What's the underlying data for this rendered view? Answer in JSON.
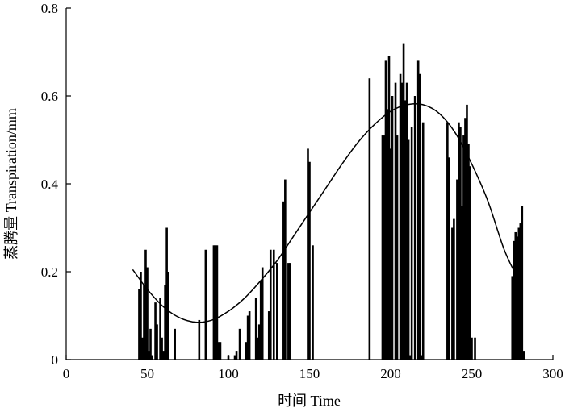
{
  "chart_data": {
    "type": "bar",
    "xlabel": "时间 Time",
    "ylabel": "蒸腾量 Transpiration/mm",
    "xlim": [
      0,
      300
    ],
    "ylim": [
      0,
      0.8
    ],
    "xticks": [
      "0",
      "50",
      "100",
      "150",
      "200",
      "250",
      "300"
    ],
    "yticks": [
      "0",
      "0.2",
      "0.4",
      "0.6",
      "0.8"
    ],
    "grid": false,
    "legend": "none",
    "bars": {
      "x": [
        45,
        46,
        47,
        48,
        49,
        50,
        51,
        52,
        53,
        55,
        56,
        58,
        59,
        60,
        61,
        62,
        63,
        67,
        82,
        86,
        91,
        92,
        93,
        94,
        95,
        100,
        104,
        105,
        107,
        111,
        112,
        113,
        117,
        118,
        119,
        120,
        121,
        125,
        126,
        128,
        130,
        134,
        135,
        137,
        138,
        149,
        150,
        152,
        187,
        195,
        196,
        197,
        198,
        199,
        200,
        201,
        203,
        204,
        206,
        207,
        208,
        209,
        210,
        211,
        212,
        213,
        215,
        217,
        218,
        219,
        220,
        235,
        236,
        238,
        239,
        241,
        242,
        243,
        244,
        245,
        246,
        247,
        248,
        249,
        250,
        252,
        275,
        276,
        277,
        278,
        279,
        280,
        281,
        282
      ],
      "values": [
        0.16,
        0.2,
        0.05,
        0.17,
        0.25,
        0.21,
        0.02,
        0.07,
        0.01,
        0.13,
        0.08,
        0.14,
        0.05,
        0.02,
        0.17,
        0.3,
        0.2,
        0.07,
        0.09,
        0.25,
        0.26,
        0.26,
        0.26,
        0.04,
        0.04,
        0.01,
        0.01,
        0.02,
        0.07,
        0.04,
        0.1,
        0.11,
        0.14,
        0.05,
        0.08,
        0.18,
        0.21,
        0.11,
        0.25,
        0.25,
        0.22,
        0.36,
        0.41,
        0.22,
        0.22,
        0.48,
        0.45,
        0.26,
        0.64,
        0.51,
        0.51,
        0.68,
        0.57,
        0.69,
        0.48,
        0.6,
        0.63,
        0.51,
        0.65,
        0.63,
        0.72,
        0.59,
        0.63,
        0.5,
        0.01,
        0.53,
        0.6,
        0.68,
        0.65,
        0.01,
        0.54,
        0.54,
        0.46,
        0.3,
        0.32,
        0.41,
        0.54,
        0.53,
        0.35,
        0.51,
        0.55,
        0.58,
        0.49,
        0.44,
        0.05,
        0.05,
        0.19,
        0.27,
        0.29,
        0.28,
        0.3,
        0.31,
        0.35,
        0.02
      ]
    },
    "fit_curve": {
      "x": [
        41,
        50,
        60,
        70,
        80,
        90,
        100,
        110,
        120,
        130,
        140,
        150,
        160,
        170,
        180,
        190,
        200,
        210,
        220,
        230,
        240,
        250,
        260,
        270,
        279
      ],
      "values": [
        0.205,
        0.16,
        0.12,
        0.095,
        0.085,
        0.09,
        0.11,
        0.14,
        0.18,
        0.225,
        0.28,
        0.335,
        0.39,
        0.445,
        0.495,
        0.535,
        0.565,
        0.58,
        0.58,
        0.56,
        0.515,
        0.445,
        0.36,
        0.25,
        0.18
      ]
    }
  }
}
